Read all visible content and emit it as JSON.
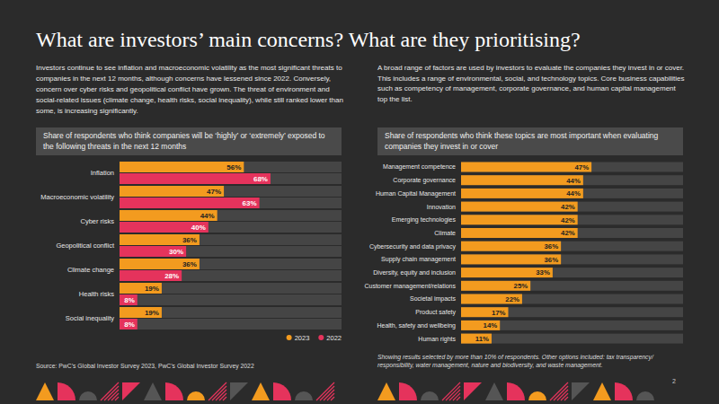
{
  "page": {
    "title": "What are investors’ main concerns? What are they prioritising?",
    "left_text": "Investors continue to see inflation and macroeconomic volatility as the most significant threats to companies in the next 12 months, although concerns have lessened since 2022. Conversely, concern over cyber risks and geopolitical conflict have grown. The threat of environment and social-related issues (climate change, health risks, social inequality), while still ranked lower than some, is increasing significantly.",
    "right_text": "A broad range of factors are used by investors to evaluate the companies they invest in or cover. This includes a range of environmental, social, and technology topics. Core business capabilities such as competency of management, corporate governance, and human capital management top the list.",
    "source": "Source: PwC’s Global Investor Survey 2023, PwC’s Global Investor Survey 2022",
    "page_number": "2"
  },
  "chart_data": [
    {
      "type": "bar",
      "orientation": "horizontal",
      "title": "Share of respondents who think companies will be ‘highly’ or ‘extremely’ exposed to the following threats in the next 12 months",
      "categories": [
        "Inflation",
        "Macroeconomic volatility",
        "Cyber risks",
        "Geopolitical conflict",
        "Climate change",
        "Health risks",
        "Social inequality"
      ],
      "series": [
        {
          "name": "2023",
          "color": "#f39b1f",
          "values": [
            56,
            47,
            44,
            36,
            36,
            19,
            19
          ],
          "value_labels": [
            "56%",
            "47%",
            "44%",
            "36%",
            "36%",
            "19%",
            "19%"
          ]
        },
        {
          "name": "2022",
          "color": "#e5335c",
          "values": [
            68,
            63,
            40,
            30,
            28,
            8,
            8
          ],
          "value_labels": [
            "68%",
            "63%",
            "40%",
            "30%",
            "28%",
            "8%",
            "8%"
          ]
        }
      ],
      "xlim": [
        0,
        100
      ],
      "data_labels": true,
      "tick_labels": "y",
      "grid": false,
      "legend": "bottom-right"
    },
    {
      "type": "bar",
      "orientation": "horizontal",
      "title": "Share of respondents who think these topics are most important when evaluating companies they invest in or cover",
      "categories": [
        "Management competence",
        "Corporate governance",
        "Human Capital Management",
        "Innovation",
        "Emerging technologies",
        "Climate",
        "Cybersecurity and data privacy",
        "Supply chain management",
        "Diversity, equity and inclusion",
        "Customer management/relations",
        "Societal impacts",
        "Product safety",
        "Health, safety and wellbeing",
        "Human rights"
      ],
      "values": [
        47,
        44,
        44,
        42,
        42,
        42,
        36,
        36,
        33,
        25,
        22,
        17,
        14,
        11
      ],
      "value_labels": [
        "47%",
        "44%",
        "44%",
        "42%",
        "42%",
        "42%",
        "36%",
        "36%",
        "33%",
        "25%",
        "22%",
        "17%",
        "14%",
        "11%"
      ],
      "color": "#f39b1f",
      "xlim": [
        0,
        80
      ],
      "data_labels": true,
      "tick_labels": "y",
      "grid": false,
      "annotations": [
        "Showing results selected by more than 10% of respondents. Other options included: tax transparency/ responsibility, water management, nature and biodiversity, and waste management."
      ]
    }
  ]
}
